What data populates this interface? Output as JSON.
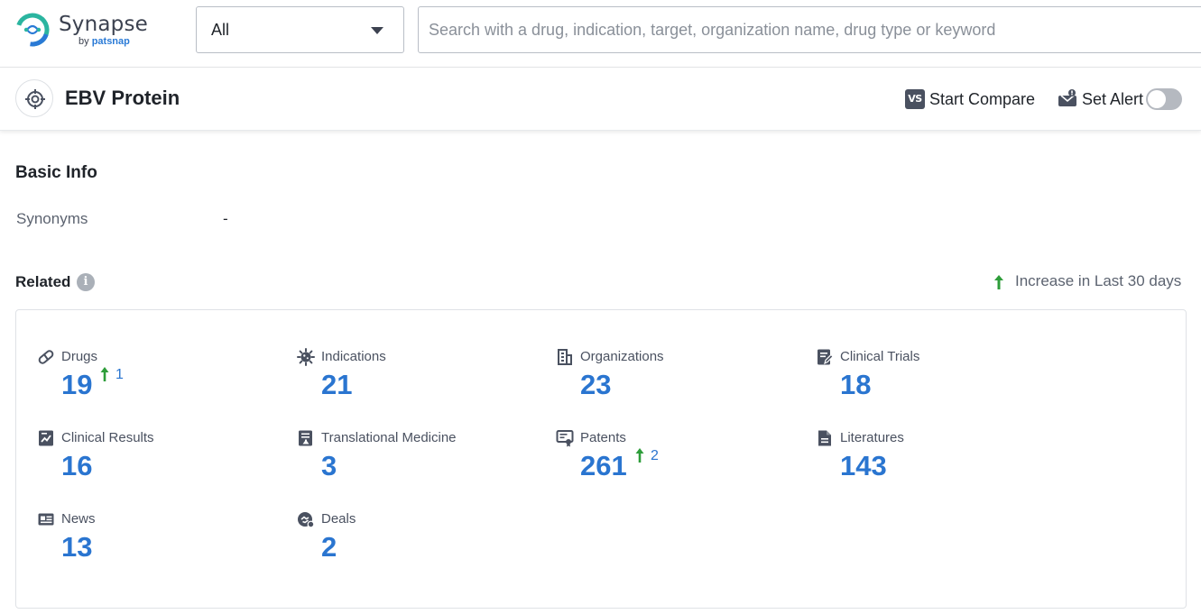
{
  "brand": {
    "name": "Synapse",
    "by_prefix": "by",
    "by_name": "patsnap",
    "colors": {
      "teal": "#2bb5a0",
      "blue": "#2a7ad6"
    }
  },
  "search": {
    "scope_value": "All",
    "placeholder": "Search with a drug, indication, target, organization name, drug type or keyword",
    "value": ""
  },
  "entity": {
    "icon": "target-icon",
    "title": "EBV Protein",
    "compare_icon_text": "VS",
    "compare_label": "Start Compare",
    "alert_label": "Set Alert",
    "alert_enabled": false
  },
  "basic_info": {
    "title": "Basic Info",
    "synonyms_label": "Synonyms",
    "synonyms_value": "-"
  },
  "related": {
    "title": "Related",
    "info_glyph": "i",
    "legend_label": "Increase in Last 30 days",
    "colors": {
      "number": "#2a75d0",
      "increase_arrow": "#2e9d3a"
    },
    "items": [
      {
        "label": "Drugs",
        "value": "19",
        "increase": "1",
        "icon": "pill-icon"
      },
      {
        "label": "Indications",
        "value": "21",
        "increase": null,
        "icon": "virus-icon"
      },
      {
        "label": "Organizations",
        "value": "23",
        "increase": null,
        "icon": "building-icon"
      },
      {
        "label": "Clinical Trials",
        "value": "18",
        "increase": null,
        "icon": "clipboard-edit-icon"
      },
      {
        "label": "Clinical Results",
        "value": "16",
        "increase": null,
        "icon": "chart-report-icon"
      },
      {
        "label": "Translational Medicine",
        "value": "3",
        "increase": null,
        "icon": "document-flask-icon"
      },
      {
        "label": "Patents",
        "value": "261",
        "increase": "2",
        "icon": "certificate-icon"
      },
      {
        "label": "Literatures",
        "value": "143",
        "increase": null,
        "icon": "document-icon"
      },
      {
        "label": "News",
        "value": "13",
        "increase": null,
        "icon": "newspaper-icon"
      },
      {
        "label": "Deals",
        "value": "2",
        "increase": null,
        "icon": "handshake-icon"
      }
    ]
  }
}
